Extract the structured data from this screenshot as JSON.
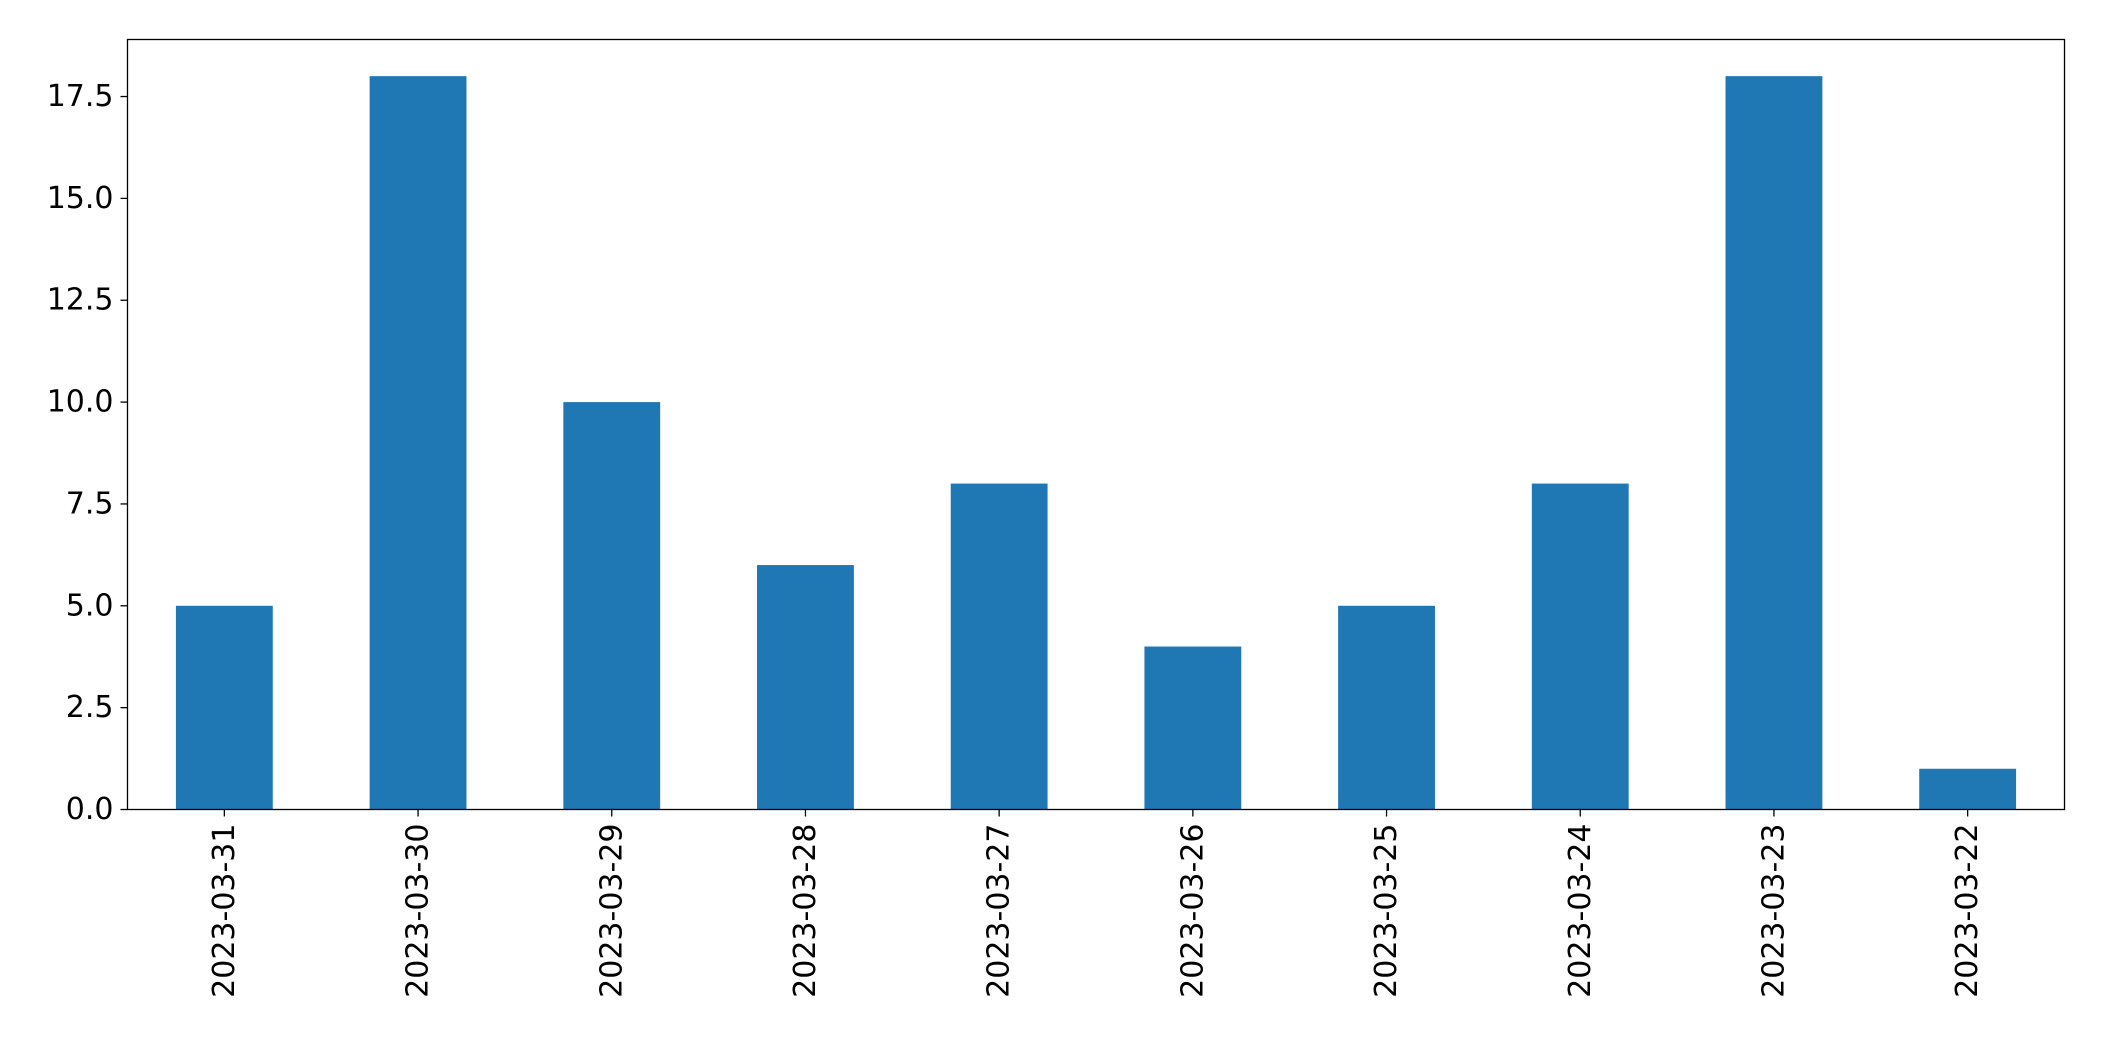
{
  "chart_data": {
    "type": "bar",
    "title": "",
    "xlabel": "",
    "ylabel": "",
    "categories": [
      "2023-03-31",
      "2023-03-30",
      "2023-03-29",
      "2023-03-28",
      "2023-03-27",
      "2023-03-26",
      "2023-03-25",
      "2023-03-24",
      "2023-03-23",
      "2023-03-22"
    ],
    "values": [
      5,
      18,
      10,
      6,
      8,
      4,
      5,
      8,
      18,
      1
    ],
    "ylim": [
      0,
      18.9
    ],
    "yticks": [
      "0.0",
      "2.5",
      "5.0",
      "7.5",
      "10.0",
      "12.5",
      "15.0",
      "17.5"
    ],
    "grid": false,
    "legend": "none",
    "bar_color": "#1f77b4"
  }
}
